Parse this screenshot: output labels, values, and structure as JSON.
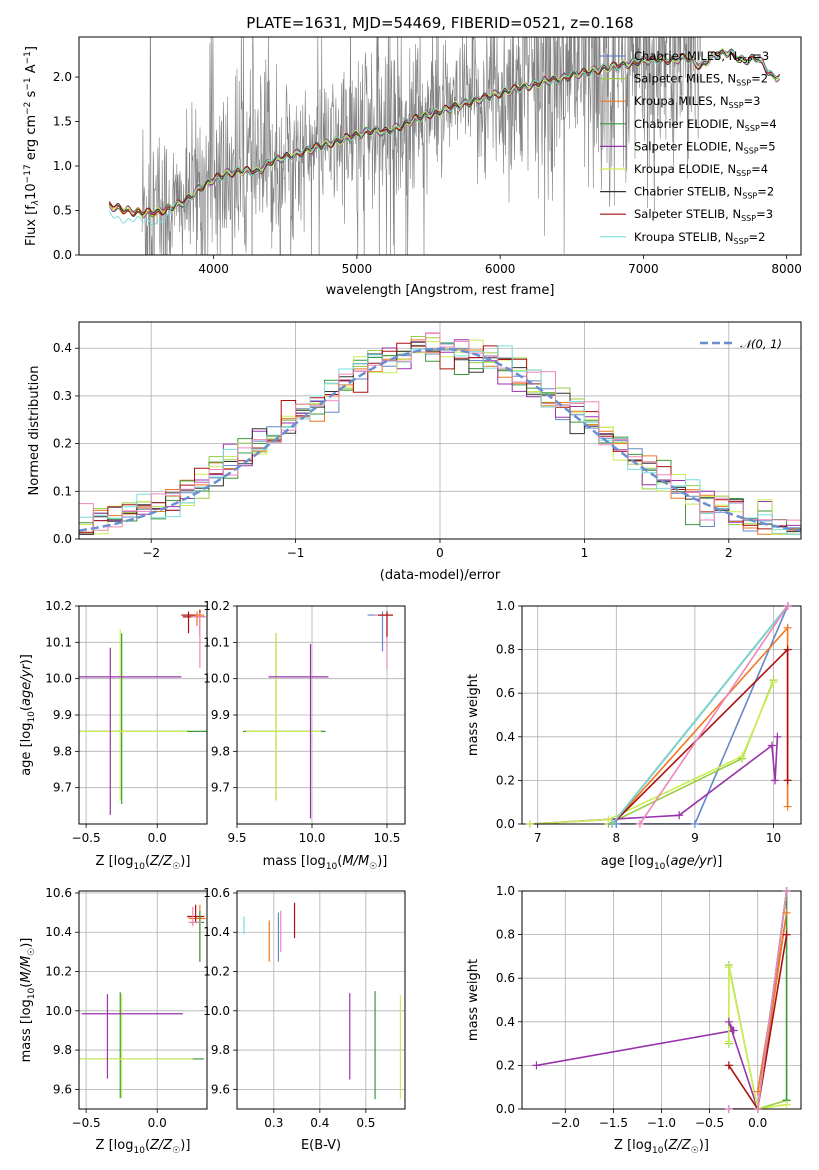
{
  "figure": {
    "title": "PLATE=1631, MJD=54469, FIBERID=0521, z=0.168"
  },
  "colors": {
    "Chabrier MILES": "#6688cc",
    "Salpeter MILES": "#99cc44",
    "Kroupa MILES": "#ee7722",
    "Chabrier ELODIE": "#3a9a3a",
    "Salpeter ELODIE": "#9933aa",
    "Kroupa ELODIE": "#ccee55",
    "Chabrier STELIB": "#333333",
    "Salpeter STELIB": "#aa1111",
    "Kroupa STELIB": "#77dddd",
    "Kroupa ELODIE pink": "#ee88bb",
    "data": "#808080",
    "normal": "#6a8fd0"
  },
  "chart_data": [
    {
      "id": "spectrum",
      "type": "line",
      "xlabel": "wavelength [Angstrom, rest frame]",
      "ylabel": "Flux [f_λ10^-17 erg cm^-2 s^-1 A^-1]",
      "xlim": [
        3060,
        8100
      ],
      "ylim": [
        0,
        2.45
      ],
      "xticks": [
        4000,
        5000,
        6000,
        7000,
        8000
      ],
      "yticks": [
        0.0,
        0.5,
        1.0,
        1.5,
        2.0
      ],
      "grid": false,
      "legend_position": "top-right",
      "legend": [
        {
          "label": "Chabrier MILES, N_SSP=3",
          "main": "Chabrier MILES, N",
          "sub": "SSP",
          "tail": "=3",
          "color": "#6688cc"
        },
        {
          "label": "Salpeter MILES, N_SSP=2",
          "main": "Salpeter MILES, N",
          "sub": "SSP",
          "tail": "=2",
          "color": "#99cc44"
        },
        {
          "label": "Kroupa MILES, N_SSP=3",
          "main": "Kroupa MILES, N",
          "sub": "SSP",
          "tail": "=3",
          "color": "#ee7722"
        },
        {
          "label": "Chabrier ELODIE, N_SSP=4",
          "main": "Chabrier ELODIE, N",
          "sub": "SSP",
          "tail": "=4",
          "color": "#3a9a3a"
        },
        {
          "label": "Salpeter ELODIE, N_SSP=5",
          "main": "Salpeter ELODIE, N",
          "sub": "SSP",
          "tail": "=5",
          "color": "#9933aa"
        },
        {
          "label": "Kroupa ELODIE, N_SSP=4",
          "main": "Kroupa ELODIE, N",
          "sub": "SSP",
          "tail": "=4",
          "color": "#ccee55"
        },
        {
          "label": "Chabrier STELIB, N_SSP=2",
          "main": "Chabrier STELIB, N",
          "sub": "SSP",
          "tail": "=2",
          "color": "#333333"
        },
        {
          "label": "Salpeter STELIB, N_SSP=3",
          "main": "Salpeter STELIB, N",
          "sub": "SSP",
          "tail": "=3",
          "color": "#aa1111"
        },
        {
          "label": "Kroupa STELIB, N_SSP=2",
          "main": "Kroupa STELIB, N",
          "sub": "SSP",
          "tail": "=2",
          "color": "#77dddd"
        }
      ],
      "model_continuum": {
        "x": [
          3270,
          3400,
          3500,
          3600,
          3700,
          3800,
          3900,
          4000,
          4100,
          4200,
          4300,
          4400,
          4500,
          4600,
          4700,
          4800,
          4900,
          5000,
          5100,
          5200,
          5300,
          5400,
          5500,
          5600,
          5700,
          5800,
          5900,
          6000,
          6100,
          6200,
          6300,
          6400,
          6500,
          6600,
          6700,
          6800,
          6900,
          7000,
          7100,
          7200,
          7300,
          7400,
          7500,
          7600,
          7700,
          7800,
          7900
        ],
        "y": [
          0.55,
          0.5,
          0.47,
          0.48,
          0.53,
          0.6,
          0.75,
          0.85,
          0.92,
          0.95,
          0.93,
          1.05,
          1.1,
          1.15,
          1.2,
          1.25,
          1.3,
          1.35,
          1.4,
          1.38,
          1.45,
          1.52,
          1.58,
          1.62,
          1.68,
          1.72,
          1.77,
          1.82,
          1.86,
          1.9,
          1.95,
          1.97,
          2.02,
          2.05,
          2.09,
          2.12,
          2.15,
          2.18,
          2.2,
          2.19,
          2.22,
          2.12,
          2.25,
          2.28,
          2.18,
          2.22,
          2.0
        ]
      },
      "data_noise": {
        "x_range": [
          3500,
          7400
        ],
        "note_values": "noisy observed flux scattered around model continuum"
      }
    },
    {
      "id": "residuals",
      "type": "step",
      "xlabel": "(data-model)/error",
      "ylabel": "Normed distribution",
      "xlim": [
        -2.5,
        2.5
      ],
      "ylim": [
        0,
        0.455
      ],
      "xticks": [
        -2,
        -1,
        0,
        1,
        2
      ],
      "xtick_labels": [
        "−2",
        "−1",
        "0",
        "1",
        "2"
      ],
      "yticks": [
        0.0,
        0.1,
        0.2,
        0.3,
        0.4
      ],
      "grid": true,
      "legend_position": "top-right",
      "legend": [
        {
          "label": "N(0,1)",
          "text": "𝒩(0, 1)",
          "color": "#6a8fd0"
        }
      ],
      "bin_width": 0.1,
      "bin_start": -2.5
    },
    {
      "id": "age-vs-Z",
      "type": "errorbar",
      "xlabel": "Z [log10(Z/Z☉)]",
      "ylabel": "age [log10(age/yr)]",
      "xlim": [
        -0.55,
        0.35
      ],
      "ylim": [
        9.6,
        10.2
      ],
      "xticks": [
        -0.5,
        0.0
      ],
      "xtick_labels": [
        "−0.5",
        "0.0"
      ],
      "yticks": [
        9.7,
        9.8,
        9.9,
        10.0,
        10.1,
        10.2
      ],
      "grid": true,
      "points": [
        {
          "x": -0.25,
          "y": 9.855,
          "xerr": [
            0.77,
            0.6
          ],
          "yerr": [
            0.2,
            0.27
          ],
          "color": "#3a9a3a"
        },
        {
          "x": -0.26,
          "y": 9.855,
          "xerr": [
            0.6,
            0.47
          ],
          "yerr": [
            0.19,
            0.28
          ],
          "color": "#ccee55"
        },
        {
          "x": -0.33,
          "y": 10.005,
          "xerr": [
            0.25,
            0.5
          ],
          "yerr": [
            0.38,
            0.08
          ],
          "color": "#9933aa"
        },
        {
          "x": 0.3,
          "y": 10.17,
          "xerr": [
            0.12,
            0.04
          ],
          "yerr": [
            0.05,
            0.02
          ],
          "color": "#aa1111"
        },
        {
          "x": 0.3,
          "y": 10.17,
          "xerr": [
            0.06,
            0.04
          ],
          "yerr": [
            0.14,
            0.01
          ],
          "color": "#ee88bb"
        },
        {
          "x": 0.28,
          "y": 10.175,
          "xerr": [
            0.05,
            0.05
          ],
          "yerr": [
            0.03,
            0.01
          ],
          "color": "#ee7722"
        },
        {
          "x": 0.22,
          "y": 10.175,
          "xerr": [
            0.05,
            0.05
          ],
          "yerr": [
            0.05,
            0.01
          ],
          "color": "#aa1111"
        }
      ]
    },
    {
      "id": "age-vs-mass",
      "type": "errorbar",
      "xlabel": "mass [log10(M/M☉)]",
      "ylabel": "",
      "xlim": [
        9.5,
        10.62
      ],
      "ylim": [
        9.6,
        10.2
      ],
      "xticks": [
        9.5,
        10.0,
        10.5
      ],
      "yticks": [
        9.7,
        9.8,
        9.9,
        10.0,
        10.1,
        10.2
      ],
      "grid": true,
      "points": [
        {
          "x": 9.76,
          "y": 9.855,
          "xerr": [
            0.22,
            0.33
          ],
          "yerr": [
            0.19,
            0.27
          ],
          "color": "#3a9a3a"
        },
        {
          "x": 9.76,
          "y": 9.855,
          "xerr": [
            0.2,
            0.3
          ],
          "yerr": [
            0.19,
            0.27
          ],
          "color": "#ccee55"
        },
        {
          "x": 9.99,
          "y": 10.005,
          "xerr": [
            0.28,
            0.12
          ],
          "yerr": [
            0.39,
            0.09
          ],
          "color": "#9933aa"
        },
        {
          "x": 10.47,
          "y": 10.175,
          "xerr": [
            0.1,
            0.06
          ],
          "yerr": [
            0.1,
            0.01
          ],
          "color": "#6688cc"
        },
        {
          "x": 10.5,
          "y": 10.175,
          "xerr": [
            0.08,
            0.04
          ],
          "yerr": [
            0.15,
            0.01
          ],
          "color": "#ee88bb"
        },
        {
          "x": 10.5,
          "y": 10.175,
          "xerr": [
            0.06,
            0.04
          ],
          "yerr": [
            0.06,
            0.01
          ],
          "color": "#aa1111"
        }
      ]
    },
    {
      "id": "weight-vs-age",
      "type": "line",
      "xlabel": "age [log10(age/yr)]",
      "ylabel": "mass weight",
      "xlim": [
        6.8,
        10.35
      ],
      "ylim": [
        0,
        1.0
      ],
      "xticks": [
        7,
        8,
        9,
        10
      ],
      "yticks": [
        0.0,
        0.2,
        0.4,
        0.6,
        0.8,
        1.0
      ],
      "grid": true,
      "series": [
        {
          "color": "#6688cc",
          "x": [
            8.0,
            9.0,
            10.18
          ],
          "y": [
            0.0,
            0.0,
            1.0
          ]
        },
        {
          "color": "#99cc44",
          "x": [
            7.9,
            9.6,
            10.0
          ],
          "y": [
            0.0,
            0.3,
            0.66
          ]
        },
        {
          "color": "#ee7722",
          "x": [
            7.95,
            10.18,
            10.18
          ],
          "y": [
            0.0,
            0.9,
            0.08
          ]
        },
        {
          "color": "#3a9a3a",
          "x": [
            7.95,
            10.18
          ],
          "y": [
            0.0,
            1.0
          ]
        },
        {
          "color": "#9933aa",
          "x": [
            6.9,
            8.8,
            9.98,
            10.02,
            10.05
          ],
          "y": [
            0.0,
            0.04,
            0.36,
            0.2,
            0.4
          ]
        },
        {
          "color": "#ccee55",
          "x": [
            6.9,
            7.9,
            9.6,
            10.0
          ],
          "y": [
            0.0,
            0.02,
            0.31,
            0.65
          ]
        },
        {
          "color": "#333333",
          "x": [
            7.95,
            10.18
          ],
          "y": [
            0.0,
            1.0
          ]
        },
        {
          "color": "#aa1111",
          "x": [
            7.95,
            10.18,
            10.18
          ],
          "y": [
            0.0,
            0.8,
            0.2
          ]
        },
        {
          "color": "#77dddd",
          "x": [
            7.95,
            10.18
          ],
          "y": [
            0.0,
            1.0
          ]
        },
        {
          "color": "#ee88bb",
          "x": [
            8.3,
            10.18
          ],
          "y": [
            0.0,
            1.0
          ]
        }
      ]
    },
    {
      "id": "mass-vs-Z",
      "type": "errorbar",
      "xlabel": "Z [log10(Z/Z☉)]",
      "ylabel": "mass [log10(M/M☉)]",
      "xlim": [
        -0.55,
        0.35
      ],
      "ylim": [
        9.5,
        10.61
      ],
      "xticks": [
        -0.5,
        0.0
      ],
      "xtick_labels": [
        "−0.5",
        "0.0"
      ],
      "yticks": [
        9.6,
        9.8,
        10.0,
        10.2,
        10.4,
        10.6
      ],
      "grid": true,
      "points": [
        {
          "x": -0.26,
          "y": 9.755,
          "xerr": [
            0.5,
            0.59
          ],
          "yerr": [
            0.2,
            0.34
          ],
          "color": "#3a9a3a"
        },
        {
          "x": -0.25,
          "y": 9.755,
          "xerr": [
            0.3,
            0.5
          ],
          "yerr": [
            0.2,
            0.33
          ],
          "color": "#ccee55"
        },
        {
          "x": -0.35,
          "y": 9.985,
          "xerr": [
            0.18,
            0.53
          ],
          "yerr": [
            0.33,
            0.1
          ],
          "color": "#9933aa"
        },
        {
          "x": 0.3,
          "y": 10.47,
          "xerr": [
            0.08,
            0.04
          ],
          "yerr": [
            0.22,
            0.07
          ],
          "color": "#ee7722"
        },
        {
          "x": 0.27,
          "y": 10.48,
          "xerr": [
            0.06,
            0.06
          ],
          "yerr": [
            0.03,
            0.06
          ],
          "color": "#aa1111"
        },
        {
          "x": 0.3,
          "y": 10.45,
          "xerr": [
            0.07,
            0.03
          ],
          "yerr": [
            0.2,
            0.06
          ],
          "color": "#3a9a3a"
        },
        {
          "x": 0.25,
          "y": 10.45,
          "xerr": [
            0.03,
            0.06
          ],
          "yerr": [
            0.02,
            0.08
          ],
          "color": "#ee88bb"
        }
      ]
    },
    {
      "id": "mass-vs-EBV",
      "type": "errorbar",
      "xlabel": "E(B-V)",
      "ylabel": "",
      "xlim": [
        0.22,
        0.585
      ],
      "ylim": [
        9.5,
        10.61
      ],
      "xticks": [
        0.3,
        0.4,
        0.5
      ],
      "yticks": [
        9.6,
        9.8,
        10.0,
        10.2,
        10.4,
        10.6
      ],
      "grid": true,
      "points": [
        {
          "x": 0.235,
          "y": 10.42,
          "yerr": [
            0.03,
            0.06
          ],
          "color": "#77dddd"
        },
        {
          "x": 0.29,
          "y": 10.35,
          "yerr": [
            0.1,
            0.11
          ],
          "color": "#ee7722"
        },
        {
          "x": 0.31,
          "y": 10.38,
          "yerr": [
            0.13,
            0.12
          ],
          "color": "#6688cc"
        },
        {
          "x": 0.315,
          "y": 10.4,
          "yerr": [
            0.1,
            0.11
          ],
          "color": "#ee88bb"
        },
        {
          "x": 0.345,
          "y": 10.46,
          "yerr": [
            0.09,
            0.09
          ],
          "color": "#aa1111"
        },
        {
          "x": 0.465,
          "y": 9.87,
          "yerr": [
            0.22,
            0.22
          ],
          "color": "#9933aa"
        },
        {
          "x": 0.52,
          "y": 9.8,
          "yerr": [
            0.25,
            0.3
          ],
          "color": "#3a9a3a"
        },
        {
          "x": 0.575,
          "y": 9.82,
          "yerr": [
            0.27,
            0.26
          ],
          "color": "#ccee55"
        }
      ]
    },
    {
      "id": "weight-vs-Z",
      "type": "line",
      "xlabel": "Z [log10(Z/Z☉)]",
      "ylabel": "mass weight",
      "xlim": [
        -2.45,
        0.45
      ],
      "ylim": [
        0,
        1.0
      ],
      "xticks": [
        -2.0,
        -1.5,
        -1.0,
        -0.5,
        0.0
      ],
      "xtick_labels": [
        "−2.0",
        "−1.5",
        "−1.0",
        "−0.5",
        "0.0"
      ],
      "yticks": [
        0.0,
        0.2,
        0.4,
        0.6,
        0.8,
        1.0
      ],
      "grid": true,
      "series": [
        {
          "color": "#6688cc",
          "x": [
            -0.3,
            0.0,
            0.3
          ],
          "y": [
            0.0,
            0.0,
            1.0
          ]
        },
        {
          "color": "#99cc44",
          "x": [
            -0.3,
            -0.3,
            0.0,
            0.3
          ],
          "y": [
            0.3,
            0.66,
            0.0,
            0.04
          ]
        },
        {
          "color": "#ee7722",
          "x": [
            0.0,
            0.3,
            0.0
          ],
          "y": [
            0.08,
            0.9,
            0.0
          ]
        },
        {
          "color": "#3a9a3a",
          "x": [
            0.0,
            0.3,
            0.3
          ],
          "y": [
            0.0,
            1.0,
            0.04
          ]
        },
        {
          "color": "#9933aa",
          "x": [
            -2.3,
            -0.25,
            -0.3,
            0.0
          ],
          "y": [
            0.2,
            0.36,
            0.4,
            0.0
          ]
        },
        {
          "color": "#ccee55",
          "x": [
            -0.3,
            -0.3,
            0.0,
            0.3
          ],
          "y": [
            0.31,
            0.65,
            0.0,
            0.02
          ]
        },
        {
          "color": "#333333",
          "x": [
            0.0,
            0.3
          ],
          "y": [
            0.0,
            1.0
          ]
        },
        {
          "color": "#aa1111",
          "x": [
            -0.3,
            0.0,
            0.3
          ],
          "y": [
            0.2,
            0.0,
            0.8
          ]
        },
        {
          "color": "#77dddd",
          "x": [
            0.0,
            0.3
          ],
          "y": [
            0.0,
            1.0
          ]
        },
        {
          "color": "#ee88bb",
          "x": [
            -0.3,
            0.0,
            0.3
          ],
          "y": [
            0.0,
            0.0,
            1.0
          ]
        }
      ]
    }
  ]
}
